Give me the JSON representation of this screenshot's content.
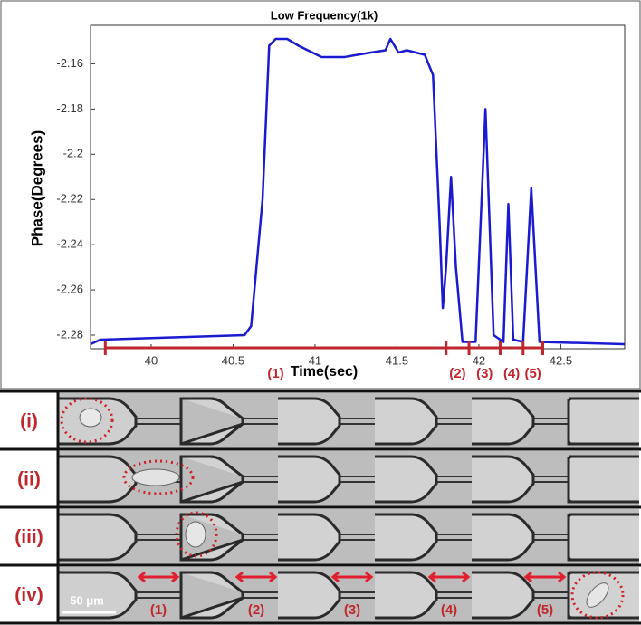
{
  "chart_data": {
    "type": "line",
    "title": "Low Frequency(1k)",
    "xlabel": "Time(sec)",
    "ylabel": "Phase(Degrees)",
    "x": [
      39.63,
      39.69,
      40.57,
      40.61,
      40.68,
      40.72,
      40.76,
      40.83,
      40.9,
      41.04,
      41.18,
      41.34,
      41.43,
      41.46,
      41.51,
      41.56,
      41.67,
      41.72,
      41.76,
      41.78,
      41.8,
      41.83,
      41.86,
      41.9,
      41.98,
      42.04,
      42.09,
      42.15,
      42.18,
      42.21,
      42.27,
      42.32,
      42.37,
      42.89
    ],
    "values": [
      -2.284,
      -2.282,
      -2.28,
      -2.276,
      -2.22,
      -2.152,
      -2.149,
      -2.149,
      -2.152,
      -2.157,
      -2.157,
      -2.155,
      -2.154,
      -2.149,
      -2.155,
      -2.154,
      -2.156,
      -2.165,
      -2.23,
      -2.268,
      -2.25,
      -2.21,
      -2.25,
      -2.283,
      -2.283,
      -2.18,
      -2.28,
      -2.283,
      -2.222,
      -2.282,
      -2.283,
      -2.215,
      -2.283,
      -2.284
    ],
    "color": "#1a1ad0",
    "xlim": [
      39.63,
      42.89
    ],
    "xticks": [
      40,
      40.5,
      41,
      41.5,
      42,
      42.5
    ],
    "ylim": [
      -2.286,
      -2.143
    ],
    "yticks": [
      -2.16,
      -2.18,
      -2.2,
      -2.22,
      -2.24,
      -2.26,
      -2.28
    ],
    "grid": false,
    "segment_boundaries": [
      39.72,
      41.8,
      41.94,
      42.13,
      42.27,
      42.39
    ],
    "segment_labels": [
      "(1)",
      "(2)",
      "(3)",
      "(4)",
      "(5)"
    ],
    "annotation_color": "#c0272d"
  },
  "panels": {
    "row_labels": [
      "(i)",
      "(ii)",
      "(iii)",
      "(iv)"
    ],
    "scale_bar": "50 μm",
    "gap_labels": [
      "(1)",
      "(2)",
      "(3)",
      "(4)",
      "(5)"
    ]
  }
}
